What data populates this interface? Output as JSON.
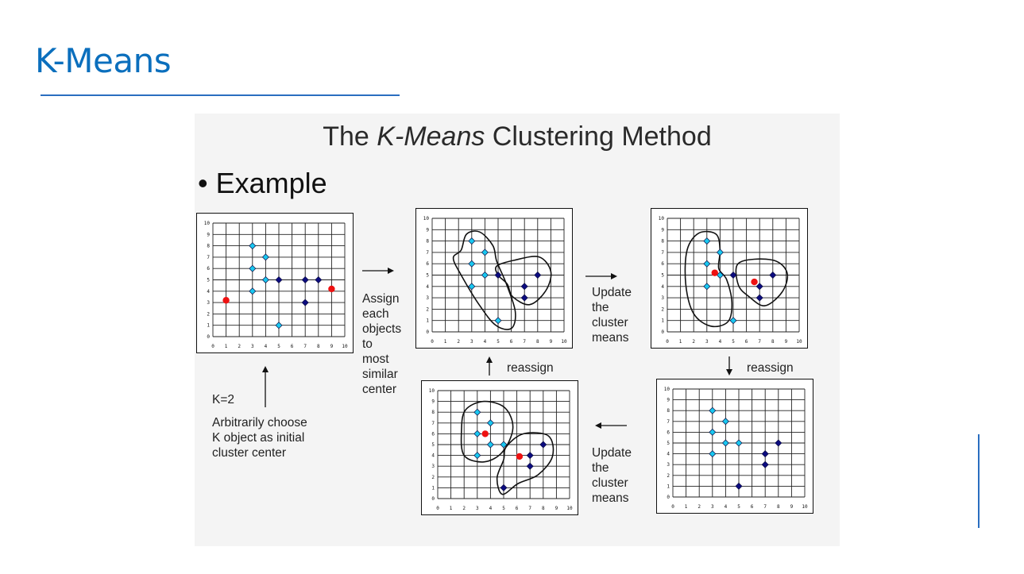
{
  "slide": {
    "title": "K-Means"
  },
  "figure": {
    "title_prefix": "The ",
    "title_italic": "K-Means",
    "title_suffix": " Clustering Method",
    "bullet": "• Example",
    "k_label": "K=2",
    "init_label": [
      "Arbitrarily choose",
      "K object as initial",
      "cluster center"
    ],
    "assign_label": [
      "Assign",
      "each",
      "objects",
      "to",
      "most",
      "similar",
      "center"
    ],
    "update_label_top": [
      "Update",
      "the",
      "cluster",
      "means"
    ],
    "update_label_bottom": [
      "Update",
      "the",
      "cluster",
      "means"
    ],
    "reassign_left": "reassign",
    "reassign_right": "reassign"
  },
  "chart_data": [
    {
      "type": "scatter",
      "panel": "initial",
      "xlim": [
        0,
        10
      ],
      "ylim": [
        0,
        10
      ],
      "xticks": [
        0,
        1,
        2,
        3,
        4,
        5,
        6,
        7,
        8,
        9,
        10
      ],
      "yticks": [
        0,
        1,
        2,
        3,
        4,
        5,
        6,
        7,
        8,
        9,
        10
      ],
      "series": [
        {
          "color": "#19c8f0",
          "marker": "diamond",
          "points": [
            [
              3,
              8
            ],
            [
              4,
              7
            ],
            [
              3,
              6
            ],
            [
              4,
              5
            ],
            [
              3,
              4
            ],
            [
              5,
              1
            ]
          ]
        },
        {
          "color": "#0c0c80",
          "marker": "diamond",
          "points": [
            [
              5,
              5
            ],
            [
              7,
              5
            ],
            [
              8,
              5
            ],
            [
              7,
              3
            ]
          ]
        },
        {
          "color": "#ee1111",
          "marker": "circle",
          "points": [
            [
              1,
              3.2
            ],
            [
              9,
              4.2
            ]
          ]
        }
      ],
      "boundaries": []
    },
    {
      "type": "scatter",
      "panel": "assigned",
      "xlim": [
        0,
        10
      ],
      "ylim": [
        0,
        10
      ],
      "xticks": [
        0,
        1,
        2,
        3,
        4,
        5,
        6,
        7,
        8,
        9,
        10
      ],
      "yticks": [
        0,
        1,
        2,
        3,
        4,
        5,
        6,
        7,
        8,
        9,
        10
      ],
      "series": [
        {
          "color": "#19c8f0",
          "marker": "diamond",
          "points": [
            [
              3,
              8
            ],
            [
              4,
              7
            ],
            [
              3,
              6
            ],
            [
              4,
              5
            ],
            [
              3,
              4
            ],
            [
              5,
              1
            ]
          ]
        },
        {
          "color": "#0c0c80",
          "marker": "diamond",
          "points": [
            [
              5,
              5
            ],
            [
              7,
              4
            ],
            [
              8,
              5
            ],
            [
              7,
              3
            ]
          ]
        }
      ],
      "boundaries": [
        [
          [
            2.2,
            7.2
          ],
          [
            2.6,
            8.6
          ],
          [
            3.6,
            8.8
          ],
          [
            4.6,
            7.6
          ],
          [
            4.9,
            6.2
          ],
          [
            5.6,
            4.3
          ],
          [
            6.3,
            1.8
          ],
          [
            6,
            0.3
          ],
          [
            4.8,
            0.6
          ],
          [
            3.5,
            2.5
          ],
          [
            2.2,
            5
          ],
          [
            1.6,
            6.5
          ]
        ],
        [
          [
            4.9,
            5.8
          ],
          [
            6.2,
            6.3
          ],
          [
            8.1,
            6.6
          ],
          [
            9,
            5.3
          ],
          [
            8.6,
            3.6
          ],
          [
            7.4,
            2.4
          ],
          [
            6.1,
            3.1
          ],
          [
            5.7,
            4.2
          ],
          [
            5,
            5
          ]
        ]
      ]
    },
    {
      "type": "scatter",
      "panel": "updated",
      "xlim": [
        0,
        10
      ],
      "ylim": [
        0,
        10
      ],
      "xticks": [
        0,
        1,
        2,
        3,
        4,
        5,
        6,
        7,
        8,
        9,
        10
      ],
      "yticks": [
        0,
        1,
        2,
        3,
        4,
        5,
        6,
        7,
        8,
        9,
        10
      ],
      "series": [
        {
          "color": "#19c8f0",
          "marker": "diamond",
          "points": [
            [
              3,
              8
            ],
            [
              4,
              7
            ],
            [
              3,
              6
            ],
            [
              4,
              5
            ],
            [
              3,
              4
            ],
            [
              5,
              1
            ]
          ]
        },
        {
          "color": "#0c0c80",
          "marker": "diamond",
          "points": [
            [
              5,
              5
            ],
            [
              7,
              4
            ],
            [
              8,
              5
            ],
            [
              7,
              3
            ]
          ]
        },
        {
          "color": "#ee1111",
          "marker": "circle",
          "points": [
            [
              3.6,
              5.2
            ],
            [
              6.6,
              4.4
            ]
          ]
        }
      ],
      "boundaries": [
        [
          [
            1.5,
            7.2
          ],
          [
            2.4,
            8.7
          ],
          [
            3.7,
            8.6
          ],
          [
            4,
            7.2
          ],
          [
            3.9,
            5.6
          ],
          [
            4.5,
            4.6
          ],
          [
            4.9,
            2.6
          ],
          [
            4.6,
            0.9
          ],
          [
            3.3,
            0.5
          ],
          [
            2,
            1.6
          ],
          [
            1.4,
            4.2
          ]
        ],
        [
          [
            5.3,
            5.9
          ],
          [
            6.6,
            6.4
          ],
          [
            8.3,
            6.2
          ],
          [
            9.1,
            5.1
          ],
          [
            8.7,
            3.5
          ],
          [
            7.4,
            2.3
          ],
          [
            6.2,
            3.1
          ],
          [
            5.4,
            4.1
          ]
        ]
      ]
    },
    {
      "type": "scatter",
      "panel": "reassigned",
      "xlim": [
        0,
        10
      ],
      "ylim": [
        0,
        10
      ],
      "xticks": [
        0,
        1,
        2,
        3,
        4,
        5,
        6,
        7,
        8,
        9,
        10
      ],
      "yticks": [
        0,
        1,
        2,
        3,
        4,
        5,
        6,
        7,
        8,
        9,
        10
      ],
      "series": [
        {
          "color": "#19c8f0",
          "marker": "diamond",
          "points": [
            [
              3,
              8
            ],
            [
              4,
              7
            ],
            [
              3,
              6
            ],
            [
              4,
              5
            ],
            [
              3,
              4
            ],
            [
              5,
              5
            ]
          ]
        },
        {
          "color": "#0c0c80",
          "marker": "diamond",
          "points": [
            [
              5,
              1
            ],
            [
              7,
              4
            ],
            [
              8,
              5
            ],
            [
              7,
              3
            ]
          ]
        }
      ],
      "boundaries": []
    },
    {
      "type": "scatter",
      "panel": "final",
      "xlim": [
        0,
        10
      ],
      "ylim": [
        0,
        10
      ],
      "xticks": [
        0,
        1,
        2,
        3,
        4,
        5,
        6,
        7,
        8,
        9,
        10
      ],
      "yticks": [
        0,
        1,
        2,
        3,
        4,
        5,
        6,
        7,
        8,
        9,
        10
      ],
      "series": [
        {
          "color": "#19c8f0",
          "marker": "diamond",
          "points": [
            [
              3,
              8
            ],
            [
              4,
              7
            ],
            [
              3,
              6
            ],
            [
              4,
              5
            ],
            [
              3,
              4
            ],
            [
              5,
              5
            ]
          ]
        },
        {
          "color": "#0c0c80",
          "marker": "diamond",
          "points": [
            [
              5,
              1
            ],
            [
              7,
              4
            ],
            [
              8,
              5
            ],
            [
              7,
              3
            ]
          ]
        },
        {
          "color": "#ee1111",
          "marker": "circle",
          "points": [
            [
              3.6,
              6
            ],
            [
              6.2,
              3.9
            ]
          ]
        }
      ],
      "boundaries": [
        [
          [
            2.1,
            8.2
          ],
          [
            3.5,
            9
          ],
          [
            5.1,
            8.4
          ],
          [
            5.7,
            6.5
          ],
          [
            4.9,
            4.3
          ],
          [
            3.5,
            3.4
          ],
          [
            2,
            4
          ],
          [
            1.8,
            6.3
          ]
        ],
        [
          [
            5.2,
            4.8
          ],
          [
            6.5,
            6
          ],
          [
            8.4,
            5.8
          ],
          [
            8.7,
            3.9
          ],
          [
            7.6,
            2.2
          ],
          [
            6.1,
            1.4
          ],
          [
            4.9,
            0.4
          ],
          [
            4.5,
            1.9
          ],
          [
            5,
            3.6
          ]
        ]
      ]
    }
  ]
}
